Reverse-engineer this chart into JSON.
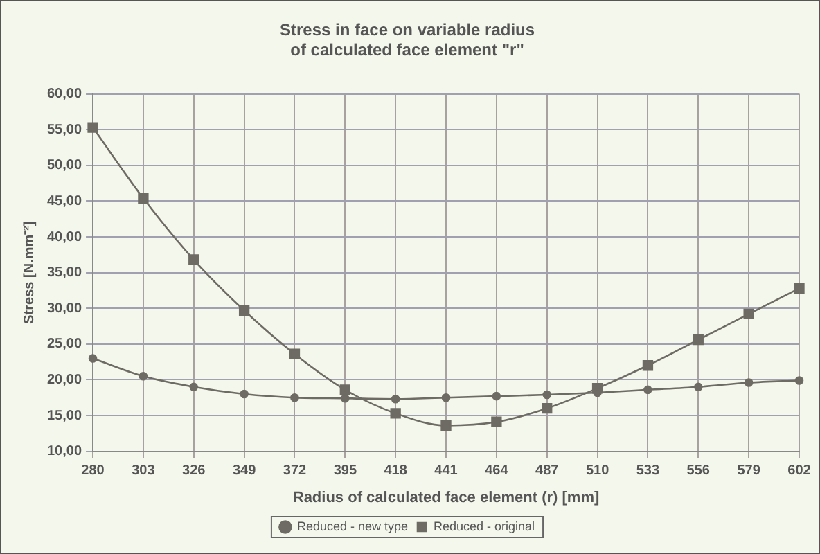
{
  "chart_data": {
    "type": "line",
    "title": "Stress in face on variable radius\nof calculated face element \"r\"",
    "xlabel": "Radius of calculated face element (r) [mm]",
    "ylabel": "Stress [N.mm⁻²]",
    "categories": [
      "280",
      "303",
      "326",
      "349",
      "372",
      "395",
      "418",
      "441",
      "464",
      "487",
      "510",
      "533",
      "556",
      "579",
      "602"
    ],
    "series": [
      {
        "name": "Reduced - new type",
        "color": "#6e6a64",
        "marker": "circle",
        "values": [
          23.0,
          20.5,
          19.0,
          18.0,
          17.5,
          17.4,
          17.3,
          17.5,
          17.7,
          17.9,
          18.2,
          18.6,
          19.0,
          19.6,
          19.9
        ]
      },
      {
        "name": "Reduced - original",
        "color": "#6e6a64",
        "marker": "square",
        "values": [
          55.3,
          45.4,
          36.8,
          29.7,
          23.6,
          18.6,
          15.3,
          13.6,
          14.1,
          16.0,
          18.8,
          22.0,
          25.6,
          29.2,
          32.8
        ]
      }
    ],
    "ylim": [
      10,
      60
    ],
    "yticks": [
      {
        "value": 10,
        "label": "10,00"
      },
      {
        "value": 15,
        "label": "15,00"
      },
      {
        "value": 20,
        "label": "20,00"
      },
      {
        "value": 25,
        "label": "25,00"
      },
      {
        "value": 30,
        "label": "30,00"
      },
      {
        "value": 35,
        "label": "35,00"
      },
      {
        "value": 40,
        "label": "40,00"
      },
      {
        "value": 45,
        "label": "45,00"
      },
      {
        "value": 50,
        "label": "50,00"
      },
      {
        "value": 55,
        "label": "55,00"
      },
      {
        "value": 60,
        "label": "60,00"
      }
    ],
    "grid": true,
    "legend": "bottom",
    "line_style": "solid"
  }
}
